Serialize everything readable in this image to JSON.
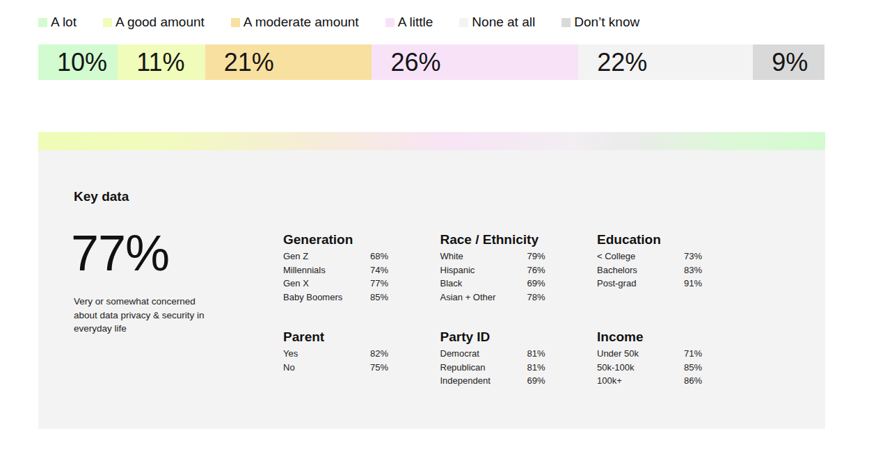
{
  "chart_data": {
    "type": "bar",
    "orientation": "horizontal",
    "stacked": true,
    "data_labels": true,
    "tick_labels": false,
    "legend": "top-left",
    "categories": [
      null
    ],
    "xlim": [
      0,
      99
    ],
    "series": [
      {
        "name": "A lot",
        "color": "#d2fbd0",
        "values": [
          10
        ],
        "value_labels": [
          "10%"
        ]
      },
      {
        "name": "A good amount",
        "color": "#f0fcb9",
        "values": [
          11
        ],
        "value_labels": [
          "11%"
        ]
      },
      {
        "name": "A moderate amount",
        "color": "#f8e0a0",
        "values": [
          21
        ],
        "value_labels": [
          "21%"
        ]
      },
      {
        "name": "A little",
        "color": "#f8e2f8",
        "values": [
          26
        ],
        "value_labels": [
          "26%"
        ]
      },
      {
        "name": "None at all",
        "color": "#f3f3f3",
        "values": [
          22
        ],
        "value_labels": [
          "22%"
        ]
      },
      {
        "name": "Don’t know",
        "color": "#d9d9d9",
        "values": [
          9
        ],
        "value_labels": [
          "9%"
        ]
      }
    ]
  },
  "key_data": {
    "title": "Key data",
    "headline": "77%",
    "description": "Very or somewhat concerned about data privacy & security in everyday life",
    "groups": [
      {
        "title": "Generation",
        "rows": [
          [
            "Gen Z",
            "68%"
          ],
          [
            "Millennials",
            "74%"
          ],
          [
            "Gen X",
            "77%"
          ],
          [
            "Baby Boomers",
            "85%"
          ]
        ]
      },
      {
        "title": "Race / Ethnicity",
        "rows": [
          [
            "White",
            "79%"
          ],
          [
            "Hispanic",
            "76%"
          ],
          [
            "Black",
            "69%"
          ],
          [
            "Asian + Other",
            "78%"
          ]
        ]
      },
      {
        "title": "Education",
        "rows": [
          [
            "< College",
            "73%"
          ],
          [
            "Bachelors",
            "83%"
          ],
          [
            "Post-grad",
            "91%"
          ]
        ]
      },
      {
        "title": "Parent",
        "rows": [
          [
            "Yes",
            "82%"
          ],
          [
            "No",
            "75%"
          ]
        ]
      },
      {
        "title": "Party ID",
        "rows": [
          [
            "Democrat",
            "81%"
          ],
          [
            "Republican",
            "81%"
          ],
          [
            "Independent",
            "69%"
          ]
        ]
      },
      {
        "title": "Income",
        "rows": [
          [
            "Under 50k",
            "71%"
          ],
          [
            "50k-100k",
            "85%"
          ],
          [
            "100k+",
            "86%"
          ]
        ]
      }
    ]
  }
}
